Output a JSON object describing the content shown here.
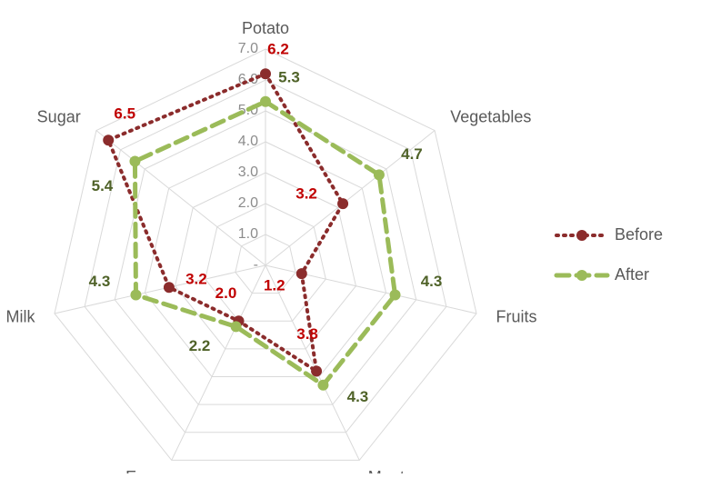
{
  "chart_data": {
    "type": "radar",
    "categories": [
      "Potato",
      "Vegetables",
      "Fruits",
      "Meat",
      "Eggs",
      "Milk",
      "Sugar"
    ],
    "series": [
      {
        "name": "Before",
        "color": "#8b2c2c",
        "label_color": "#c00000",
        "values": [
          6.2,
          3.2,
          1.2,
          3.8,
          2.0,
          3.2,
          6.5
        ],
        "value_labels": [
          "6.2",
          "3.2",
          "1.2",
          "3.8",
          "2.0",
          "3.2",
          "6.5"
        ]
      },
      {
        "name": "After",
        "color": "#9bbb59",
        "label_color": "#4f6228",
        "values": [
          5.3,
          4.7,
          4.3,
          4.3,
          2.2,
          4.3,
          5.4
        ],
        "value_labels": [
          "5.3",
          "4.7",
          "4.3",
          "4.3",
          "2.2",
          "4.3",
          "5.4"
        ]
      }
    ],
    "rlim": [
      0,
      7
    ],
    "rticks": [
      {
        "value": 0,
        "label": "-"
      },
      {
        "value": 1,
        "label": "1.0"
      },
      {
        "value": 2,
        "label": "2.0"
      },
      {
        "value": 3,
        "label": "3.0"
      },
      {
        "value": 4,
        "label": "4.0"
      },
      {
        "value": 5,
        "label": "5.0"
      },
      {
        "value": 6,
        "label": "6.0"
      },
      {
        "value": 7,
        "label": "7.0"
      }
    ],
    "grid": true,
    "legend": "right"
  }
}
